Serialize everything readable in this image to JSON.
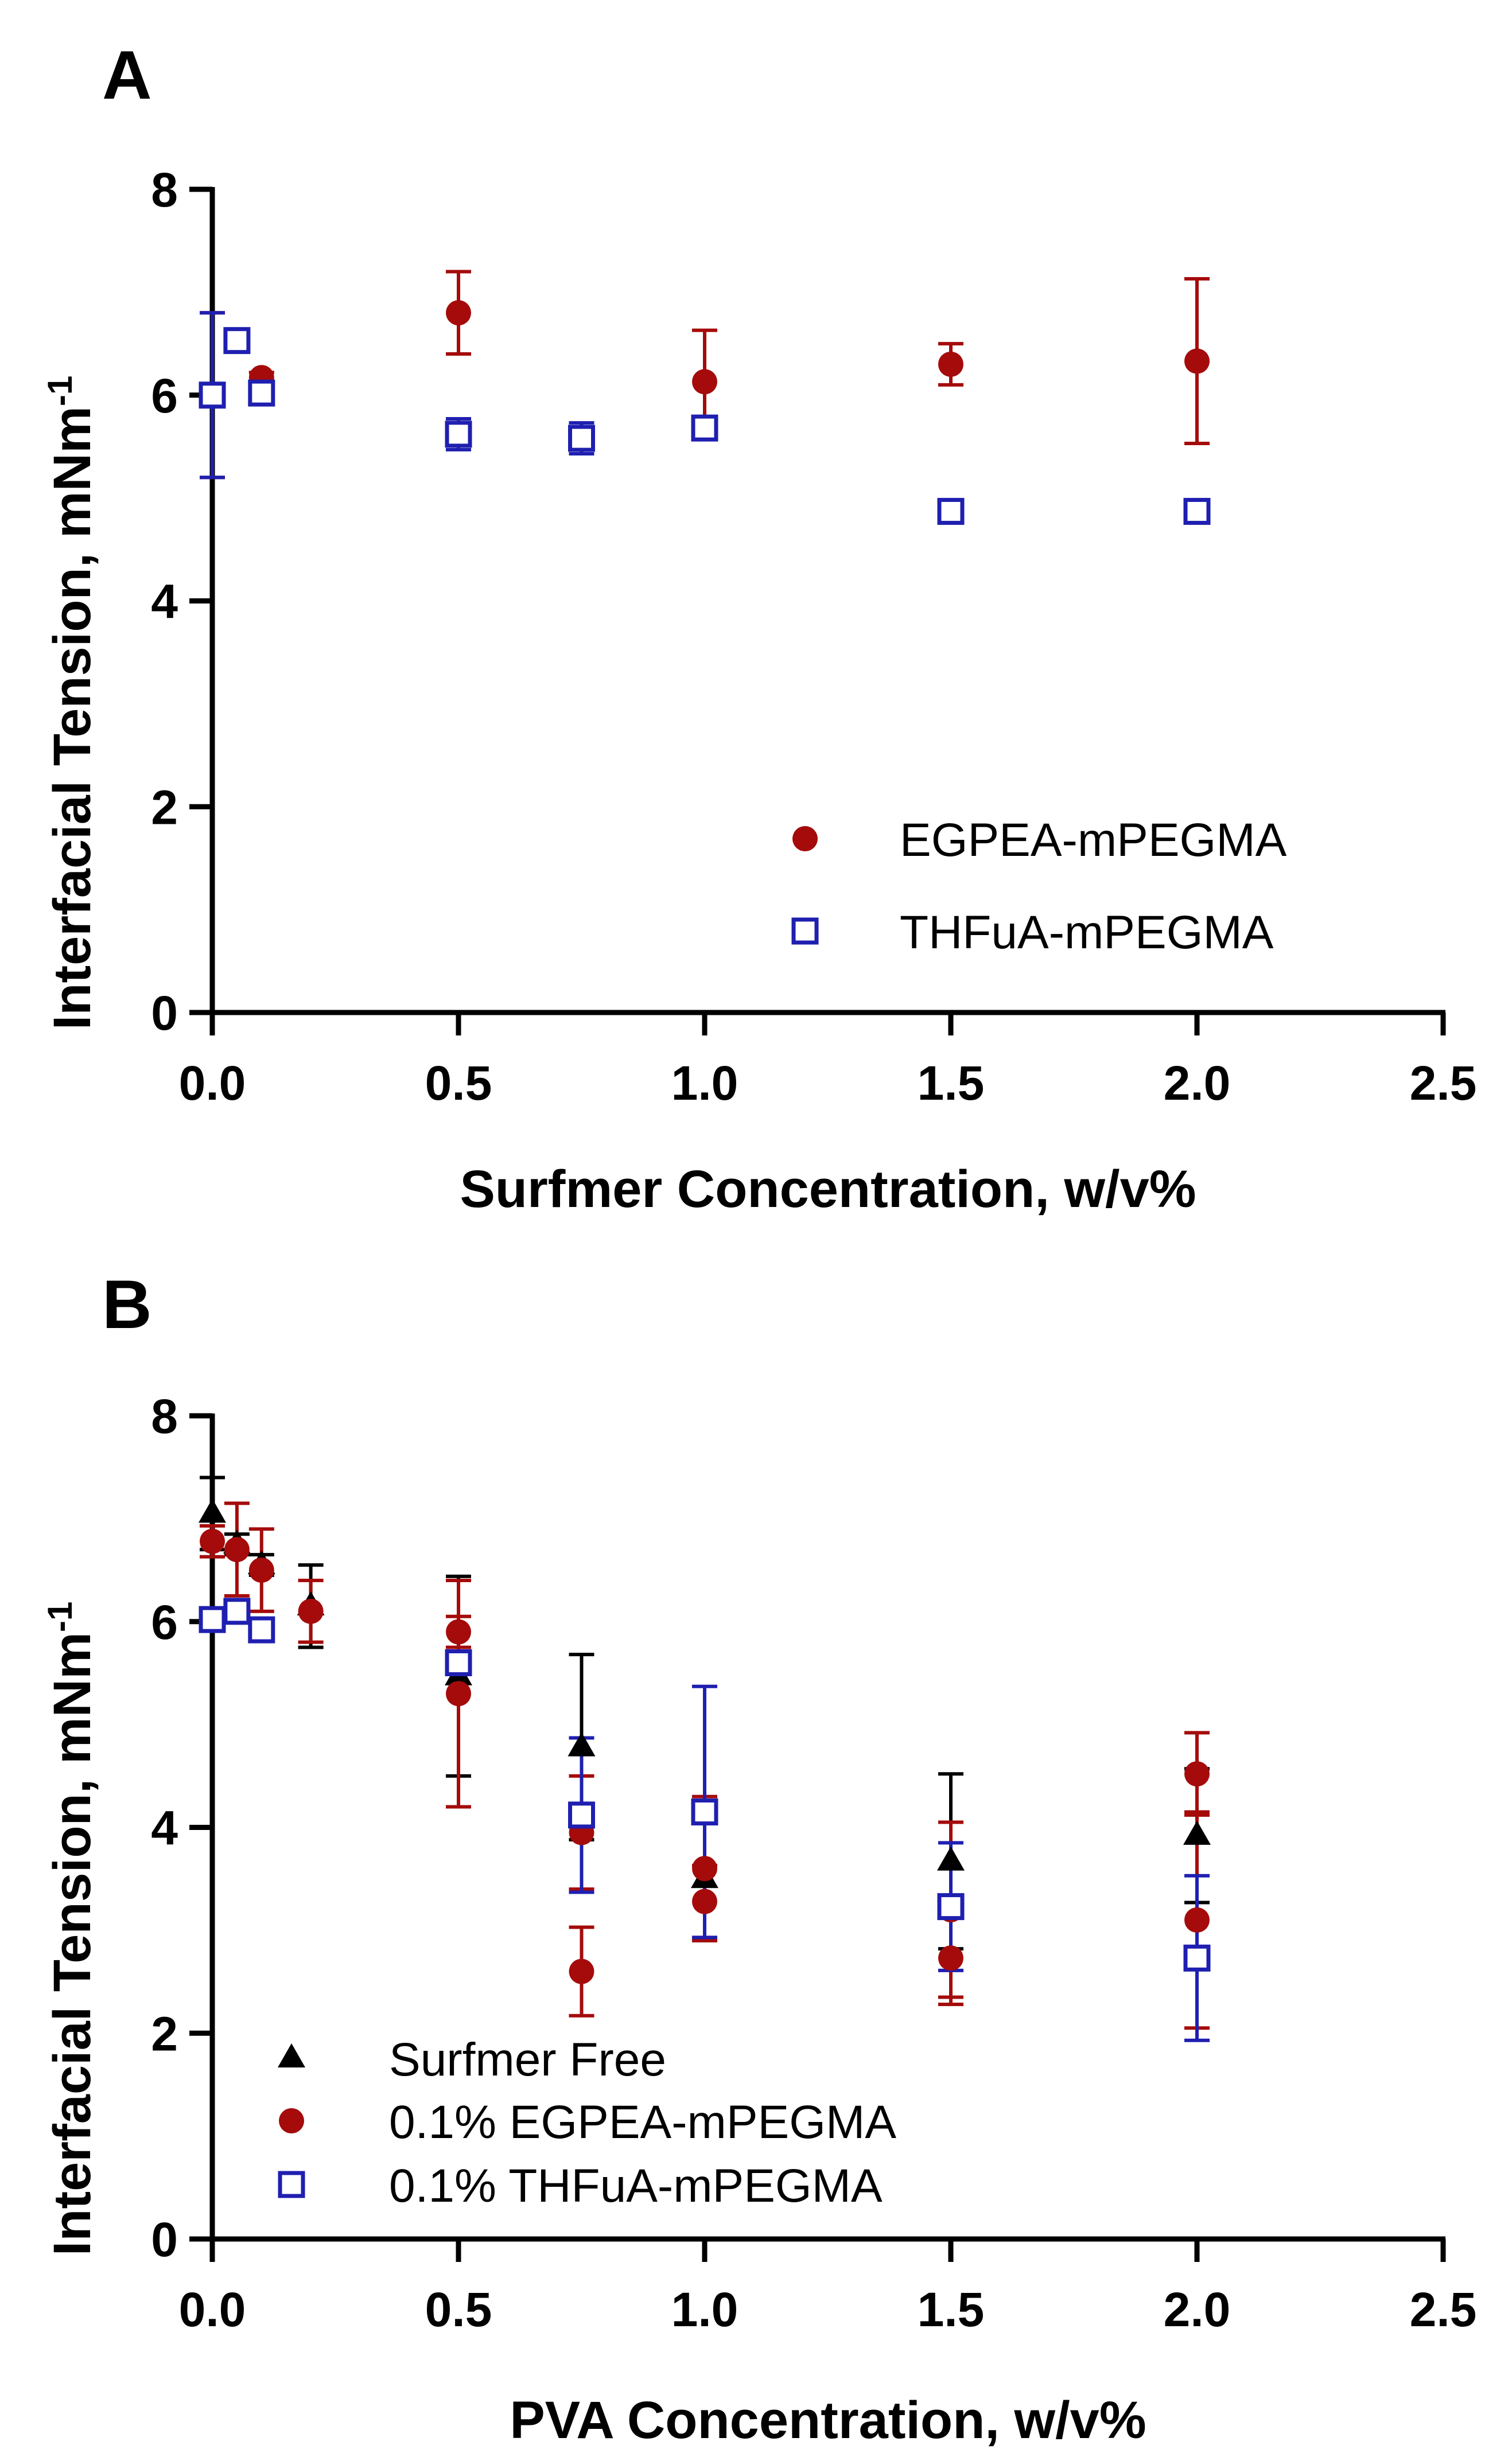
{
  "colors": {
    "egpea": "#a50b0b",
    "thfua": "#1f1fb0",
    "free": "#000000"
  },
  "chart_data": [
    {
      "panel": "A",
      "type": "scatter",
      "xlabel": "Surfmer Concentration, w/v%",
      "ylabel": "Interfacial Tension, mNm",
      "ylabel_sup": "-1",
      "xlim": [
        0,
        2.5
      ],
      "ylim": [
        0,
        8
      ],
      "xticks": [
        "0.0",
        "0.5",
        "1.0",
        "1.5",
        "2.0",
        "2.5"
      ],
      "yticks": [
        "0",
        "2",
        "4",
        "6",
        "8"
      ],
      "legend_position": "lower-right",
      "series": [
        {
          "name": "EGPEA-mPEGMA",
          "marker": "circle",
          "color_key": "egpea",
          "points": [
            {
              "x": 0.0,
              "y": 6.0,
              "err": 0.8
            },
            {
              "x": 0.1,
              "y": 6.17,
              "err": 0.05
            },
            {
              "x": 0.5,
              "y": 6.8,
              "err": 0.4
            },
            {
              "x": 1.0,
              "y": 6.13,
              "err": 0.5
            },
            {
              "x": 1.5,
              "y": 6.3,
              "err": 0.2
            },
            {
              "x": 2.0,
              "y": 6.33,
              "err": 0.8
            }
          ]
        },
        {
          "name": "THFuA-mPEGMA",
          "marker": "square",
          "color_key": "thfua",
          "points": [
            {
              "x": 0.0,
              "y": 6.0,
              "err": 0.8
            },
            {
              "x": 0.05,
              "y": 6.53,
              "err": 0.05
            },
            {
              "x": 0.1,
              "y": 6.02,
              "err": 0.05
            },
            {
              "x": 0.5,
              "y": 5.62,
              "err": 0.15
            },
            {
              "x": 0.75,
              "y": 5.58,
              "err": 0.15
            },
            {
              "x": 1.0,
              "y": 5.68,
              "err": 0.08
            },
            {
              "x": 1.5,
              "y": 4.87,
              "err": 0.05
            },
            {
              "x": 2.0,
              "y": 4.87,
              "err": 0.05
            }
          ]
        }
      ]
    },
    {
      "panel": "B",
      "type": "scatter",
      "xlabel": "PVA Concentration, w/v%",
      "ylabel": "Interfacial Tension, mNm",
      "ylabel_sup": "-1",
      "xlim": [
        0,
        2.5
      ],
      "ylim": [
        0,
        8
      ],
      "xticks": [
        "0.0",
        "0.5",
        "1.0",
        "1.5",
        "2.0",
        "2.5"
      ],
      "yticks": [
        "0",
        "2",
        "4",
        "6",
        "8"
      ],
      "legend_position": "lower-left",
      "series": [
        {
          "name": "Surfmer Free",
          "marker": "triangle",
          "color_key": "free",
          "points": [
            {
              "x": 0.0,
              "y": 7.05,
              "err": 0.35
            },
            {
              "x": 0.05,
              "y": 6.75,
              "err": 0.1
            },
            {
              "x": 0.1,
              "y": 6.55,
              "err": 0.1
            },
            {
              "x": 0.2,
              "y": 6.15,
              "err": 0.4
            },
            {
              "x": 0.5,
              "y": 5.47,
              "err": 0.97
            },
            {
              "x": 0.75,
              "y": 4.78,
              "err": 0.9
            },
            {
              "x": 1.0,
              "y": 3.5,
              "err": 0.6
            },
            {
              "x": 1.5,
              "y": 3.67,
              "err": 0.85
            },
            {
              "x": 2.0,
              "y": 3.92,
              "err": 0.65
            }
          ]
        },
        {
          "name": "0.1% EGPEA-mPEGMA",
          "marker": "circle",
          "color_key": "egpea",
          "points": [
            {
              "x": 0.0,
              "y": 6.78,
              "err": 0.15
            },
            {
              "x": 0.05,
              "y": 6.7,
              "err": 0.45
            },
            {
              "x": 0.1,
              "y": 6.5,
              "err": 0.4
            },
            {
              "x": 0.2,
              "y": 6.1,
              "err": 0.3
            },
            {
              "x": 0.5,
              "y": 5.9,
              "err": 0.15
            },
            {
              "x": 0.5,
              "y": 5.3,
              "err": 1.1
            },
            {
              "x": 0.75,
              "y": 3.95,
              "err": 0.55
            },
            {
              "x": 0.75,
              "y": 2.6,
              "err": 0.43
            },
            {
              "x": 1.0,
              "y": 3.6,
              "err": 0.7
            },
            {
              "x": 1.0,
              "y": 3.28,
              "err": 0.35
            },
            {
              "x": 1.5,
              "y": 3.2,
              "err": 0.85
            },
            {
              "x": 1.5,
              "y": 2.73,
              "err": 0.45
            },
            {
              "x": 2.0,
              "y": 4.52,
              "err": 0.4
            },
            {
              "x": 2.0,
              "y": 3.1,
              "err": 1.05
            }
          ]
        },
        {
          "name": "0.1% THFuA-mPEGMA",
          "marker": "square",
          "color_key": "thfua",
          "points": [
            {
              "x": 0.0,
              "y": 6.02,
              "err": 0.05
            },
            {
              "x": 0.05,
              "y": 6.1,
              "err": 0.05
            },
            {
              "x": 0.1,
              "y": 5.92,
              "err": 0.05
            },
            {
              "x": 0.5,
              "y": 5.6,
              "err": 0.1
            },
            {
              "x": 0.75,
              "y": 4.12,
              "err": 0.75
            },
            {
              "x": 1.0,
              "y": 4.15,
              "err": 1.22
            },
            {
              "x": 1.5,
              "y": 3.23,
              "err": 0.62
            },
            {
              "x": 2.0,
              "y": 2.73,
              "err": 0.8
            }
          ]
        }
      ]
    }
  ]
}
